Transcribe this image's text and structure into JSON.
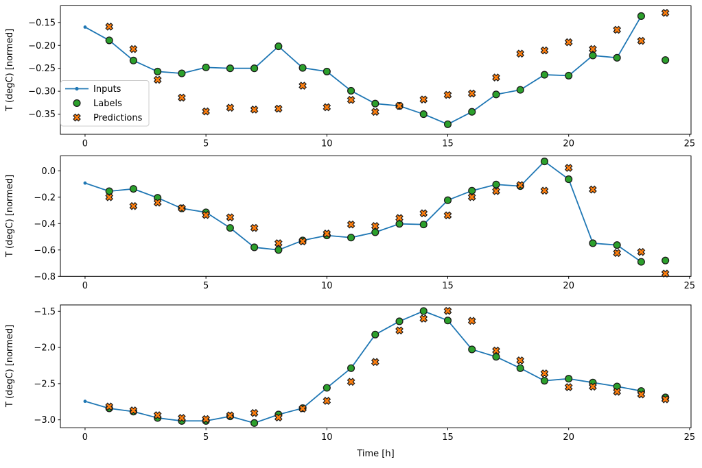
{
  "figure": {
    "ylabel": "T (degC) [normed]",
    "xlabel": "Time [h]",
    "x_ticks": [
      0,
      5,
      10,
      15,
      20,
      25
    ],
    "x_tick_labels": [
      "0",
      "5",
      "10",
      "15",
      "20",
      "25"
    ],
    "colors": {
      "inputs": "#1f77b4",
      "labels": "#2ca02c",
      "predictions": "#ff7f0e",
      "marker_edge": "#1a1a1a",
      "axes": "#000000",
      "legend_border": "#cccccc"
    },
    "legend": {
      "items": [
        {
          "label": "Inputs",
          "marker": "line-dot",
          "color": "#1f77b4"
        },
        {
          "label": "Labels",
          "marker": "filled-circle",
          "color": "#2ca02c"
        },
        {
          "label": "Predictions",
          "marker": "filled-x",
          "color": "#ff7f0e"
        }
      ]
    }
  },
  "chart_data": [
    {
      "type": "line",
      "title": "",
      "ylabel": "T (degC) [normed]",
      "xlabel": "",
      "grid": false,
      "legend_position": "center-left",
      "xlim": [
        -1.02,
        25.06
      ],
      "ylim": [
        -0.394,
        -0.1136
      ],
      "y_ticks": [
        -0.15,
        -0.2,
        -0.25,
        -0.3,
        -0.35
      ],
      "y_tick_labels": [
        "−0.15",
        "−0.20",
        "−0.25",
        "−0.30",
        "−0.35"
      ],
      "series": [
        {
          "name": "Inputs",
          "x": [
            0,
            1,
            2,
            3,
            4,
            5,
            6,
            7,
            8,
            9,
            10,
            11,
            12,
            13,
            14,
            15,
            16,
            17,
            18,
            19,
            20,
            21,
            22,
            23
          ],
          "y": [
            -0.16,
            -0.189,
            -0.233,
            -0.257,
            -0.261,
            -0.248,
            -0.25,
            -0.25,
            -0.202,
            -0.249,
            -0.257,
            -0.299,
            -0.327,
            -0.332,
            -0.35,
            -0.372,
            -0.345,
            -0.307,
            -0.297,
            -0.264,
            -0.266,
            -0.222,
            -0.227,
            -0.136
          ]
        },
        {
          "name": "Labels",
          "x": [
            1,
            2,
            3,
            4,
            5,
            6,
            7,
            8,
            9,
            10,
            11,
            12,
            13,
            14,
            15,
            16,
            17,
            18,
            19,
            20,
            21,
            22,
            23,
            24
          ],
          "y": [
            -0.189,
            -0.233,
            -0.257,
            -0.261,
            -0.248,
            -0.25,
            -0.25,
            -0.202,
            -0.249,
            -0.257,
            -0.299,
            -0.327,
            -0.332,
            -0.35,
            -0.372,
            -0.345,
            -0.307,
            -0.297,
            -0.264,
            -0.266,
            -0.222,
            -0.227,
            -0.136,
            -0.232
          ]
        },
        {
          "name": "Predictions",
          "x": [
            1,
            2,
            3,
            4,
            5,
            6,
            7,
            8,
            9,
            10,
            11,
            12,
            13,
            14,
            15,
            16,
            17,
            18,
            19,
            20,
            21,
            22,
            23,
            24
          ],
          "y": [
            -0.159,
            -0.208,
            -0.275,
            -0.314,
            -0.344,
            -0.336,
            -0.34,
            -0.338,
            -0.288,
            -0.335,
            -0.319,
            -0.345,
            -0.332,
            -0.318,
            -0.308,
            -0.305,
            -0.27,
            -0.218,
            -0.211,
            -0.193,
            -0.208,
            -0.166,
            -0.19,
            -0.129
          ]
        }
      ]
    },
    {
      "type": "line",
      "title": "",
      "ylabel": "T (degC) [normed]",
      "xlabel": "",
      "grid": false,
      "xlim": [
        -1.02,
        25.06
      ],
      "ylim": [
        -0.8,
        0.113
      ],
      "y_ticks": [
        0.0,
        -0.2,
        -0.4,
        -0.6,
        -0.8
      ],
      "y_tick_labels": [
        "0.0",
        "−0.2",
        "−0.4",
        "−0.6",
        "−0.8"
      ],
      "series": [
        {
          "name": "Inputs",
          "x": [
            0,
            1,
            2,
            3,
            4,
            5,
            6,
            7,
            8,
            9,
            10,
            11,
            12,
            13,
            14,
            15,
            16,
            17,
            18,
            19,
            20,
            21,
            22,
            23
          ],
          "y": [
            -0.093,
            -0.155,
            -0.137,
            -0.205,
            -0.285,
            -0.315,
            -0.433,
            -0.58,
            -0.6,
            -0.528,
            -0.49,
            -0.506,
            -0.466,
            -0.402,
            -0.407,
            -0.223,
            -0.151,
            -0.104,
            -0.116,
            0.071,
            -0.064,
            -0.549,
            -0.563,
            -0.69
          ]
        },
        {
          "name": "Labels",
          "x": [
            1,
            2,
            3,
            4,
            5,
            6,
            7,
            8,
            9,
            10,
            11,
            12,
            13,
            14,
            15,
            16,
            17,
            18,
            19,
            20,
            21,
            22,
            23,
            24
          ],
          "y": [
            -0.155,
            -0.137,
            -0.205,
            -0.285,
            -0.315,
            -0.433,
            -0.58,
            -0.6,
            -0.528,
            -0.49,
            -0.506,
            -0.466,
            -0.402,
            -0.407,
            -0.223,
            -0.151,
            -0.104,
            -0.116,
            0.071,
            -0.064,
            -0.549,
            -0.563,
            -0.69,
            -0.68
          ]
        },
        {
          "name": "Predictions",
          "x": [
            1,
            2,
            3,
            4,
            5,
            6,
            7,
            8,
            9,
            10,
            11,
            12,
            13,
            14,
            15,
            16,
            17,
            18,
            19,
            20,
            21,
            22,
            23,
            24
          ],
          "y": [
            -0.2,
            -0.267,
            -0.241,
            -0.283,
            -0.335,
            -0.353,
            -0.433,
            -0.549,
            -0.535,
            -0.476,
            -0.407,
            -0.419,
            -0.358,
            -0.322,
            -0.338,
            -0.199,
            -0.154,
            -0.108,
            -0.151,
            0.022,
            -0.142,
            -0.623,
            -0.615,
            -0.779
          ]
        }
      ]
    },
    {
      "type": "line",
      "title": "",
      "ylabel": "T (degC) [normed]",
      "xlabel": "Time [h]",
      "grid": false,
      "xlim": [
        -1.02,
        25.06
      ],
      "ylim": [
        -3.11,
        -1.412
      ],
      "y_ticks": [
        -1.5,
        -2.0,
        -2.5,
        -3.0
      ],
      "y_tick_labels": [
        "−1.5",
        "−2.0",
        "−2.5",
        "−3.0"
      ],
      "series": [
        {
          "name": "Inputs",
          "x": [
            0,
            1,
            2,
            3,
            4,
            5,
            6,
            7,
            8,
            9,
            10,
            11,
            12,
            13,
            14,
            15,
            16,
            17,
            18,
            19,
            20,
            21,
            22,
            23
          ],
          "y": [
            -2.744,
            -2.842,
            -2.886,
            -2.974,
            -3.015,
            -3.015,
            -2.952,
            -3.044,
            -2.927,
            -2.839,
            -2.558,
            -2.286,
            -1.822,
            -1.639,
            -1.497,
            -1.627,
            -2.027,
            -2.129,
            -2.286,
            -2.46,
            -2.432,
            -2.485,
            -2.539,
            -2.602
          ]
        },
        {
          "name": "Labels",
          "x": [
            1,
            2,
            3,
            4,
            5,
            6,
            7,
            8,
            9,
            10,
            11,
            12,
            13,
            14,
            15,
            16,
            17,
            18,
            19,
            20,
            21,
            22,
            23,
            24
          ],
          "y": [
            -2.842,
            -2.886,
            -2.974,
            -3.015,
            -3.015,
            -2.952,
            -3.044,
            -2.927,
            -2.839,
            -2.558,
            -2.286,
            -1.822,
            -1.639,
            -1.497,
            -1.627,
            -2.027,
            -2.129,
            -2.286,
            -2.46,
            -2.432,
            -2.485,
            -2.539,
            -2.602,
            -2.69
          ]
        },
        {
          "name": "Predictions",
          "x": [
            1,
            2,
            3,
            4,
            5,
            6,
            7,
            8,
            9,
            10,
            11,
            12,
            13,
            14,
            15,
            16,
            17,
            18,
            19,
            20,
            21,
            22,
            23,
            24
          ],
          "y": [
            -2.816,
            -2.87,
            -2.937,
            -2.975,
            -2.99,
            -2.94,
            -2.905,
            -2.968,
            -2.845,
            -2.738,
            -2.475,
            -2.201,
            -1.765,
            -1.601,
            -1.494,
            -1.633,
            -2.043,
            -2.179,
            -2.359,
            -2.548,
            -2.542,
            -2.612,
            -2.649,
            -2.716
          ]
        }
      ]
    }
  ]
}
